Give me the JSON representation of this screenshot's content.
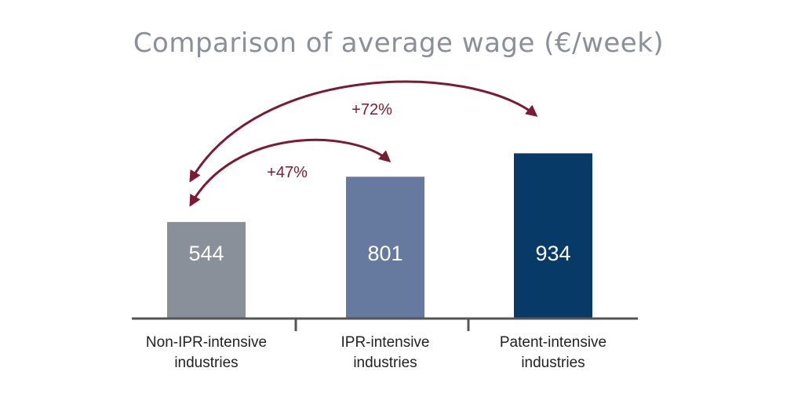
{
  "chart_data": {
    "type": "bar",
    "title": "Comparison of average wage (€/week)",
    "categories": [
      [
        "Non-IPR-intensive",
        "industries"
      ],
      [
        "IPR-intensive",
        "industries"
      ],
      [
        "Patent-intensive",
        "industries"
      ]
    ],
    "values": [
      544,
      801,
      934
    ],
    "value_labels": [
      "544",
      "801",
      "934"
    ],
    "colors": [
      "#8a9099",
      "#66799e",
      "#083a68"
    ],
    "annotations": [
      {
        "text": "+47%",
        "from_category": 0,
        "to_category": 1
      },
      {
        "text": "+72%",
        "from_category": 0,
        "to_category": 2
      }
    ],
    "annotation_color": "#7a1a33",
    "axis_color": "#555555"
  }
}
